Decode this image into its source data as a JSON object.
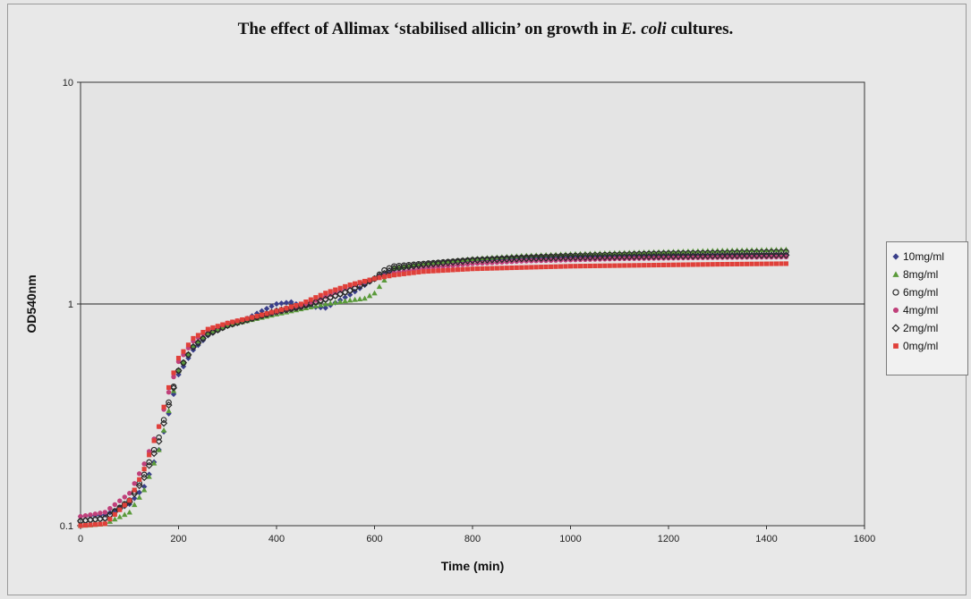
{
  "chart_data": {
    "type": "scatter",
    "title_parts": [
      {
        "text": "The effect of Allimax ‘stabilised allicin’ on growth in ",
        "italic": false
      },
      {
        "text": "E. coli",
        "italic": true
      },
      {
        "text": " cultures.",
        "italic": false
      }
    ],
    "xlabel": "Time (min)",
    "ylabel": "OD540nm",
    "xlim": [
      0,
      1600
    ],
    "ylim": [
      0.1,
      10
    ],
    "y_scale": "log",
    "x_ticks": [
      "0",
      "200",
      "400",
      "600",
      "800",
      "1000",
      "1200",
      "1400",
      "1600"
    ],
    "y_ticks": [
      "0.1",
      "1",
      "10"
    ],
    "grid": "horizontal major gridline at 1",
    "legend_position": "right",
    "series": [
      {
        "name": "10mg/ml",
        "marker": "diamond-filled",
        "color": "#3a3f8a",
        "x": [
          0,
          50,
          100,
          130,
          160,
          180,
          200,
          230,
          260,
          300,
          340,
          370,
          400,
          430,
          450,
          500,
          550,
          600,
          640,
          700,
          800,
          900,
          1000,
          1100,
          1200,
          1300,
          1440
        ],
        "y": [
          0.11,
          0.112,
          0.125,
          0.15,
          0.22,
          0.32,
          0.48,
          0.62,
          0.72,
          0.8,
          0.86,
          0.93,
          1.0,
          1.02,
          0.98,
          0.96,
          1.1,
          1.3,
          1.42,
          1.5,
          1.58,
          1.6,
          1.62,
          1.63,
          1.65,
          1.66,
          1.67
        ]
      },
      {
        "name": "8mg/ml",
        "marker": "triangle",
        "color": "#5a9a3a",
        "x": [
          0,
          50,
          100,
          130,
          160,
          180,
          200,
          230,
          260,
          300,
          350,
          400,
          450,
          500,
          550,
          580,
          600,
          620,
          640,
          700,
          800,
          900,
          1000,
          1100,
          1200,
          1300,
          1440
        ],
        "y": [
          0.1,
          0.102,
          0.115,
          0.145,
          0.22,
          0.33,
          0.5,
          0.65,
          0.74,
          0.8,
          0.85,
          0.9,
          0.95,
          1.0,
          1.04,
          1.06,
          1.12,
          1.28,
          1.45,
          1.52,
          1.6,
          1.65,
          1.68,
          1.7,
          1.72,
          1.74,
          1.76
        ]
      },
      {
        "name": "6mg/ml",
        "marker": "circle-open",
        "color": "#2a2a2a",
        "x": [
          0,
          50,
          100,
          130,
          160,
          180,
          200,
          230,
          260,
          300,
          350,
          400,
          450,
          500,
          550,
          600,
          620,
          640,
          700,
          800,
          900,
          1000,
          1100,
          1200,
          1300,
          1440
        ],
        "y": [
          0.105,
          0.108,
          0.13,
          0.17,
          0.25,
          0.36,
          0.5,
          0.64,
          0.73,
          0.8,
          0.86,
          0.92,
          0.97,
          1.05,
          1.15,
          1.3,
          1.42,
          1.48,
          1.52,
          1.58,
          1.62,
          1.65,
          1.67,
          1.69,
          1.7,
          1.72
        ]
      },
      {
        "name": "4mg/ml",
        "marker": "circle-filled",
        "color": "#c0407a",
        "x": [
          0,
          50,
          100,
          130,
          160,
          180,
          200,
          230,
          260,
          300,
          350,
          400,
          450,
          500,
          550,
          600,
          640,
          700,
          800,
          900,
          1000,
          1100,
          1200,
          1300,
          1440
        ],
        "y": [
          0.11,
          0.115,
          0.14,
          0.19,
          0.28,
          0.4,
          0.55,
          0.68,
          0.76,
          0.82,
          0.87,
          0.92,
          0.98,
          1.08,
          1.2,
          1.3,
          1.38,
          1.45,
          1.52,
          1.56,
          1.58,
          1.6,
          1.61,
          1.62,
          1.63
        ]
      },
      {
        "name": "2mg/ml",
        "marker": "diamond-open",
        "color": "#2a2a2a",
        "x": [
          0,
          50,
          100,
          130,
          160,
          180,
          200,
          230,
          260,
          300,
          350,
          400,
          450,
          500,
          550,
          600,
          640,
          700,
          800,
          900,
          1000,
          1100,
          1200,
          1300,
          1440
        ],
        "y": [
          0.105,
          0.108,
          0.128,
          0.165,
          0.24,
          0.35,
          0.5,
          0.64,
          0.73,
          0.8,
          0.86,
          0.93,
          0.98,
          1.05,
          1.15,
          1.3,
          1.45,
          1.5,
          1.57,
          1.6,
          1.62,
          1.63,
          1.64,
          1.65,
          1.66
        ]
      },
      {
        "name": "0mg/ml",
        "marker": "square",
        "color": "#e0403a",
        "x": [
          0,
          50,
          100,
          130,
          160,
          180,
          200,
          230,
          260,
          300,
          350,
          400,
          450,
          500,
          550,
          600,
          640,
          700,
          800,
          900,
          1000,
          1100,
          1200,
          1300,
          1440
        ],
        "y": [
          0.1,
          0.102,
          0.13,
          0.18,
          0.28,
          0.42,
          0.57,
          0.7,
          0.77,
          0.82,
          0.87,
          0.93,
          1.0,
          1.12,
          1.22,
          1.3,
          1.35,
          1.4,
          1.44,
          1.46,
          1.48,
          1.49,
          1.5,
          1.51,
          1.52
        ]
      }
    ]
  }
}
